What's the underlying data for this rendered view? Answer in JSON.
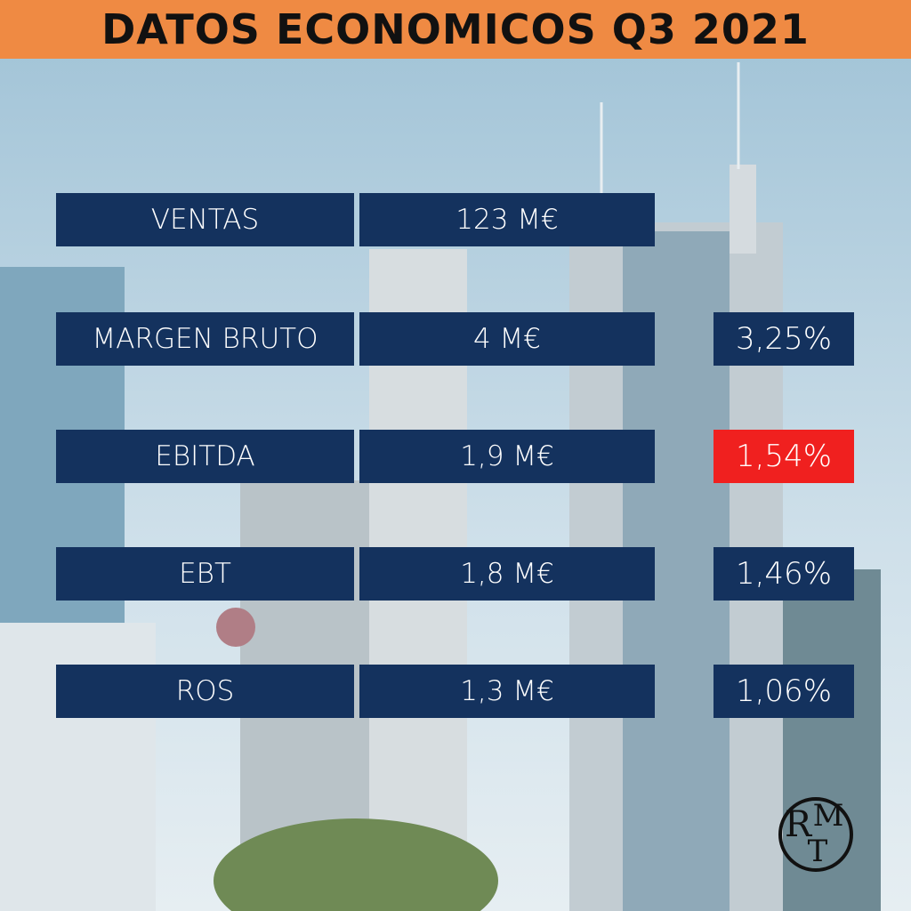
{
  "header": {
    "title": "DATOS ECONOMICOS Q3 2021"
  },
  "rows": [
    {
      "label": "VENTAS",
      "value": "123 M€"
    },
    {
      "label": "MARGEN BRUTO",
      "value": "4 M€",
      "percent": "3,25%"
    },
    {
      "label": "EBITDA",
      "value": "1,9 M€",
      "percent": "1,54%",
      "highlight": true
    },
    {
      "label": "EBT",
      "value": "1,8 M€",
      "percent": "1,46%"
    },
    {
      "label": "ROS",
      "value": "1,3 M€",
      "percent": "1,06%"
    }
  ],
  "logo": {
    "letters": [
      "R",
      "M",
      "T"
    ]
  }
}
